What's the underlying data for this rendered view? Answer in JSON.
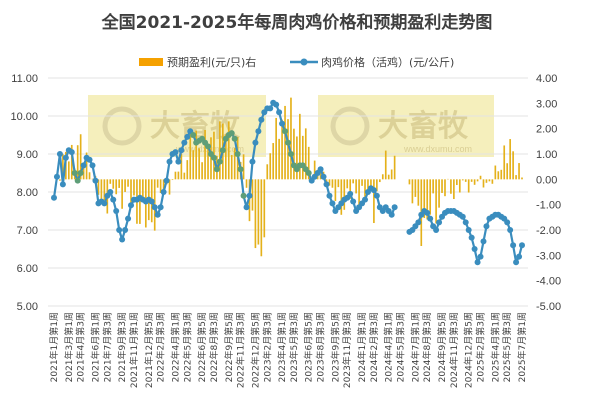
{
  "chart_data": {
    "type": "bar+line",
    "title": "全国2021-2025年每周肉鸡价格和预期盈利走势图",
    "legend": {
      "placement": "top",
      "items": [
        {
          "label": "预期盈利(元/只)右",
          "color": "#F5A100",
          "marker": "bar"
        },
        {
          "label": "肉鸡价格（活鸡）(元/公斤)",
          "color": "#3A8DBE",
          "marker": "line"
        }
      ]
    },
    "colors": {
      "bar": "#E4B11A",
      "line": "#3A8DBE",
      "line_highlight": "#5E9E78",
      "watermark_bg": "#F2EAA6"
    },
    "left_axis": {
      "min": 5,
      "max": 11,
      "ticks": [
        "5.00",
        "6.00",
        "7.00",
        "8.00",
        "9.00",
        "10.00",
        "11.00"
      ]
    },
    "right_axis": {
      "min": -5,
      "max": 4,
      "ticks": [
        "-5.00",
        "-4.00",
        "-3.00",
        "-2.00",
        "-1.00",
        "0.00",
        "1.00",
        "2.00",
        "3.00",
        "4.00"
      ]
    },
    "x_labels": [
      "2021年1月第1周",
      "2021年3月第1周",
      "2021年4月第3周",
      "2021年6月第1周",
      "2021年7月第3周",
      "2021年9月第3周",
      "2021年11月第1周",
      "2021年12月第5周",
      "2022年2月第3周",
      "2022年4月第1周",
      "2022年5月第3周",
      "2022年6月第5周",
      "2022年8月第3周",
      "2022年9月第5周",
      "2022年11月第3周",
      "2022年12月第5周",
      "2023年2月第3周",
      "2023年4月第1周",
      "2023年5月第3周",
      "2023年6月第5周",
      "2023年8月第3周",
      "2023年9月第5周",
      "2023年11月第3周",
      "2024年1月第1周",
      "2024年2月第3周",
      "2024年4月第1周",
      "2024年5月第3周",
      "2024年7月第1周",
      "2024年8月第3周",
      "2024年9月第5周",
      "2024年11月第3周",
      "2024年12月第5周",
      "2025年2月第3周",
      "2025年4月第1周",
      "2025年5月第3周",
      "2025年7月第1周"
    ],
    "price_anchors": [
      [
        0,
        7.85
      ],
      [
        1,
        8.4
      ],
      [
        2,
        9.0
      ],
      [
        3,
        8.2
      ],
      [
        4,
        8.9
      ],
      [
        5,
        9.1
      ],
      [
        6,
        9.05
      ],
      [
        7,
        8.5
      ],
      [
        8,
        8.3
      ],
      [
        9,
        8.5
      ],
      [
        10,
        8.7
      ],
      [
        11,
        8.9
      ],
      [
        12,
        8.85
      ],
      [
        13,
        8.7
      ],
      [
        14,
        8.3
      ],
      [
        15,
        7.7
      ],
      [
        16,
        7.75
      ],
      [
        17,
        7.7
      ],
      [
        18,
        7.9
      ],
      [
        19,
        8.0
      ],
      [
        20,
        7.8
      ],
      [
        21,
        7.5
      ],
      [
        22,
        7.0
      ],
      [
        23,
        6.75
      ],
      [
        24,
        7.0
      ],
      [
        25,
        7.3
      ],
      [
        26,
        7.65
      ],
      [
        27,
        7.8
      ],
      [
        28,
        7.8
      ],
      [
        29,
        7.85
      ],
      [
        30,
        7.8
      ],
      [
        31,
        7.75
      ],
      [
        32,
        7.8
      ],
      [
        33,
        7.75
      ],
      [
        34,
        7.6
      ],
      [
        35,
        7.4
      ],
      [
        36,
        7.6
      ],
      [
        37,
        8.0
      ],
      [
        38,
        8.3
      ],
      [
        39,
        8.8
      ],
      [
        40,
        9.0
      ],
      [
        41,
        9.05
      ],
      [
        42,
        8.8
      ],
      [
        43,
        9.1
      ],
      [
        44,
        9.3
      ],
      [
        45,
        9.45
      ],
      [
        46,
        9.6
      ],
      [
        47,
        9.5
      ],
      [
        48,
        9.3
      ],
      [
        49,
        9.35
      ],
      [
        50,
        9.4
      ],
      [
        51,
        9.3
      ],
      [
        52,
        9.2
      ],
      [
        53,
        9.0
      ],
      [
        54,
        8.9
      ],
      [
        55,
        8.6
      ],
      [
        56,
        8.8
      ],
      [
        57,
        9.1
      ],
      [
        58,
        9.4
      ],
      [
        59,
        9.5
      ],
      [
        60,
        9.55
      ],
      [
        61,
        9.4
      ],
      [
        62,
        9.0
      ],
      [
        63,
        8.6
      ],
      [
        64,
        7.9
      ],
      [
        65,
        7.6
      ],
      [
        66,
        7.9
      ],
      [
        67,
        8.8
      ],
      [
        68,
        9.3
      ],
      [
        69,
        9.6
      ],
      [
        70,
        9.9
      ],
      [
        71,
        10.1
      ],
      [
        72,
        10.2
      ],
      [
        73,
        10.2
      ],
      [
        74,
        10.35
      ],
      [
        75,
        10.3
      ],
      [
        76,
        10.1
      ],
      [
        77,
        9.8
      ],
      [
        78,
        9.6
      ],
      [
        79,
        9.3
      ],
      [
        80,
        9.0
      ],
      [
        81,
        8.7
      ],
      [
        82,
        8.6
      ],
      [
        83,
        8.7
      ],
      [
        84,
        8.7
      ],
      [
        85,
        8.6
      ],
      [
        86,
        8.5
      ],
      [
        87,
        8.3
      ],
      [
        88,
        8.4
      ],
      [
        89,
        8.5
      ],
      [
        90,
        8.6
      ],
      [
        91,
        8.4
      ],
      [
        92,
        8.2
      ],
      [
        93,
        7.9
      ],
      [
        94,
        7.7
      ],
      [
        95,
        7.5
      ],
      [
        96,
        7.6
      ],
      [
        97,
        7.7
      ],
      [
        98,
        7.8
      ],
      [
        99,
        7.85
      ],
      [
        100,
        7.95
      ],
      [
        101,
        7.75
      ],
      [
        102,
        7.5
      ],
      [
        103,
        7.6
      ],
      [
        104,
        7.7
      ],
      [
        105,
        7.8
      ],
      [
        106,
        8.0
      ],
      [
        107,
        8.1
      ],
      [
        108,
        8.05
      ],
      [
        109,
        7.9
      ],
      [
        110,
        7.6
      ],
      [
        111,
        7.5
      ],
      [
        112,
        7.6
      ],
      [
        113,
        7.5
      ],
      [
        114,
        7.4
      ],
      [
        115,
        7.6
      ],
      [
        120,
        6.95
      ],
      [
        121,
        7.0
      ],
      [
        122,
        7.1
      ],
      [
        123,
        7.2
      ],
      [
        124,
        7.4
      ],
      [
        125,
        7.5
      ],
      [
        126,
        7.45
      ],
      [
        127,
        7.3
      ],
      [
        128,
        7.1
      ],
      [
        129,
        7.0
      ],
      [
        130,
        7.2
      ],
      [
        131,
        7.35
      ],
      [
        132,
        7.45
      ],
      [
        133,
        7.5
      ],
      [
        134,
        7.5
      ],
      [
        135,
        7.5
      ],
      [
        136,
        7.45
      ],
      [
        137,
        7.4
      ],
      [
        138,
        7.35
      ],
      [
        139,
        7.2
      ],
      [
        140,
        7.0
      ],
      [
        141,
        6.8
      ],
      [
        142,
        6.5
      ],
      [
        143,
        6.15
      ],
      [
        144,
        6.3
      ],
      [
        145,
        6.7
      ],
      [
        146,
        7.1
      ],
      [
        147,
        7.3
      ],
      [
        148,
        7.35
      ],
      [
        149,
        7.4
      ],
      [
        150,
        7.4
      ],
      [
        151,
        7.35
      ],
      [
        152,
        7.3
      ],
      [
        153,
        7.2
      ],
      [
        154,
        7.0
      ],
      [
        155,
        6.6
      ],
      [
        156,
        6.15
      ],
      [
        157,
        6.3
      ],
      [
        158,
        6.6
      ]
    ],
    "highlight_ranges": [
      [
        7,
        9
      ],
      [
        47,
        64
      ],
      [
        78,
        86
      ]
    ],
    "profit_anchors": [
      [
        0,
        0.0
      ],
      [
        4,
        0.8
      ],
      [
        8,
        1.3
      ],
      [
        12,
        0.6
      ],
      [
        16,
        -0.9
      ],
      [
        20,
        -0.5
      ],
      [
        24,
        -0.6
      ],
      [
        28,
        -1.2
      ],
      [
        32,
        -1.9
      ],
      [
        36,
        -0.6
      ],
      [
        40,
        -0.1
      ],
      [
        44,
        0.9
      ],
      [
        48,
        1.5
      ],
      [
        52,
        1.3
      ],
      [
        56,
        2.0
      ],
      [
        60,
        1.7
      ],
      [
        64,
        0.6
      ],
      [
        68,
        -2.6
      ],
      [
        70,
        -3.2
      ],
      [
        72,
        0.4
      ],
      [
        76,
        2.4
      ],
      [
        80,
        2.6
      ],
      [
        84,
        1.9
      ],
      [
        88,
        0.5
      ],
      [
        92,
        0.0
      ],
      [
        96,
        -1.0
      ],
      [
        100,
        -0.6
      ],
      [
        104,
        -0.5
      ],
      [
        108,
        -0.9
      ],
      [
        112,
        0.6
      ],
      [
        116,
        0.7
      ],
      [
        120,
        -0.4
      ],
      [
        124,
        -1.8
      ],
      [
        128,
        -1.3
      ],
      [
        132,
        -0.5
      ],
      [
        136,
        -0.4
      ],
      [
        140,
        -0.2
      ],
      [
        144,
        -0.1
      ],
      [
        148,
        -0.1
      ],
      [
        152,
        1.1
      ],
      [
        156,
        0.8
      ],
      [
        158,
        0.2
      ]
    ],
    "n_weeks": 159,
    "watermark": {
      "brand": "大畜牧",
      "url": "www.dxumu.com"
    }
  }
}
